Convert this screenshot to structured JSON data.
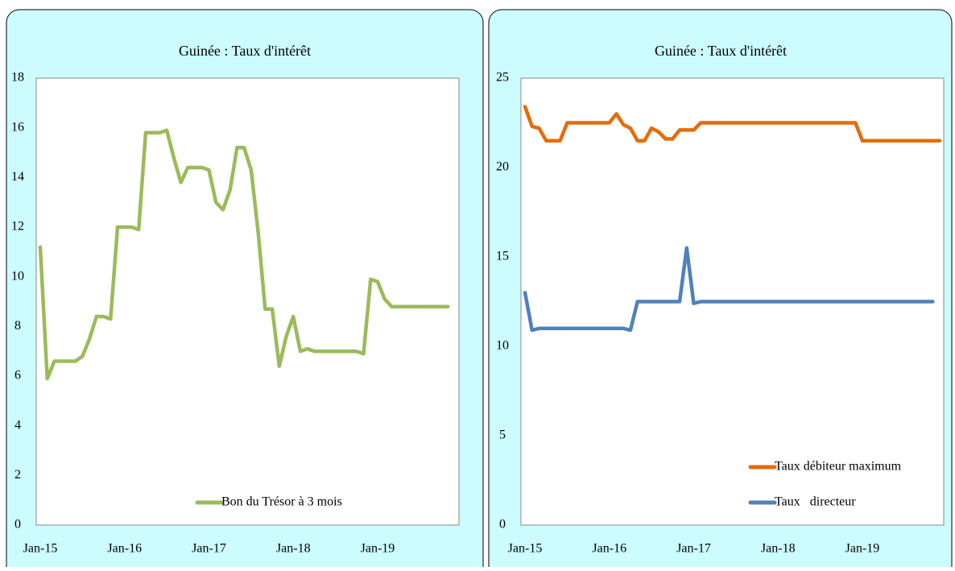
{
  "chart_data": [
    {
      "type": "line",
      "title": "Guinée : Taux d'intérêt",
      "categories": [
        "Jan-15",
        null,
        null,
        null,
        null,
        null,
        null,
        null,
        null,
        null,
        null,
        null,
        "Jan-16",
        null,
        null,
        null,
        null,
        null,
        null,
        null,
        null,
        null,
        null,
        null,
        "Jan-17",
        null,
        null,
        null,
        null,
        null,
        null,
        null,
        null,
        null,
        null,
        null,
        "Jan-18",
        null,
        null,
        null,
        null,
        null,
        null,
        null,
        null,
        null,
        null,
        null,
        "Jan-19",
        null,
        null,
        null,
        null,
        null,
        null,
        null,
        null,
        null,
        null,
        null
      ],
      "series": [
        {
          "name": "Bon du Trésor à 3 mois",
          "color": "#9bbb59",
          "values": [
            11.2,
            5.9,
            6.6,
            6.6,
            6.6,
            6.6,
            6.8,
            7.5,
            8.4,
            8.4,
            8.3,
            12.0,
            12.0,
            12.0,
            11.9,
            15.8,
            15.8,
            15.8,
            15.9,
            14.8,
            13.8,
            14.4,
            14.4,
            14.4,
            14.3,
            13.0,
            12.7,
            13.5,
            15.2,
            15.2,
            14.3,
            11.8,
            8.7,
            8.7,
            6.4,
            7.6,
            8.4,
            7.0,
            7.1,
            7.0,
            7.0,
            7.0,
            7.0,
            7.0,
            7.0,
            7.0,
            6.9,
            9.9,
            9.8,
            9.1,
            8.8,
            8.8,
            8.8,
            8.8,
            8.8,
            8.8,
            8.8,
            8.8,
            8.8,
            null
          ]
        }
      ],
      "ylim": [
        0,
        18
      ],
      "yticks": [
        0,
        2,
        4,
        6,
        8,
        10,
        12,
        14,
        16,
        18
      ],
      "legend": "lower-center"
    },
    {
      "type": "line",
      "title": "Guinée : Taux d'intérêt",
      "categories": [
        "Jan-15",
        null,
        null,
        null,
        null,
        null,
        null,
        null,
        null,
        null,
        null,
        null,
        "Jan-16",
        null,
        null,
        null,
        null,
        null,
        null,
        null,
        null,
        null,
        null,
        null,
        "Jan-17",
        null,
        null,
        null,
        null,
        null,
        null,
        null,
        null,
        null,
        null,
        null,
        "Jan-18",
        null,
        null,
        null,
        null,
        null,
        null,
        null,
        null,
        null,
        null,
        null,
        "Jan-19",
        null,
        null,
        null,
        null,
        null,
        null,
        null,
        null,
        null,
        null,
        null
      ],
      "series": [
        {
          "name": "Taux débiteur maximum",
          "color": "#e46c0a",
          "values": [
            23.4,
            22.3,
            22.2,
            21.5,
            21.5,
            21.5,
            22.5,
            22.5,
            22.5,
            22.5,
            22.5,
            22.5,
            22.5,
            23.0,
            22.4,
            22.2,
            21.5,
            21.5,
            22.2,
            22.0,
            21.6,
            21.6,
            22.1,
            22.1,
            22.1,
            22.5,
            22.5,
            22.5,
            22.5,
            22.5,
            22.5,
            22.5,
            22.5,
            22.5,
            22.5,
            22.5,
            22.5,
            22.5,
            22.5,
            22.5,
            22.5,
            22.5,
            22.5,
            22.5,
            22.5,
            22.5,
            22.5,
            22.5,
            21.5,
            21.5,
            21.5,
            21.5,
            21.5,
            21.5,
            21.5,
            21.5,
            21.5,
            21.5,
            21.5,
            21.5
          ]
        },
        {
          "name": "Taux   directeur",
          "color": "#4f81bd",
          "values": [
            13.0,
            10.9,
            11.0,
            11.0,
            11.0,
            11.0,
            11.0,
            11.0,
            11.0,
            11.0,
            11.0,
            11.0,
            11.0,
            11.0,
            11.0,
            10.9,
            12.5,
            12.5,
            12.5,
            12.5,
            12.5,
            12.5,
            12.5,
            15.5,
            12.4,
            12.5,
            12.5,
            12.5,
            12.5,
            12.5,
            12.5,
            12.5,
            12.5,
            12.5,
            12.5,
            12.5,
            12.5,
            12.5,
            12.5,
            12.5,
            12.5,
            12.5,
            12.5,
            12.5,
            12.5,
            12.5,
            12.5,
            12.5,
            12.5,
            12.5,
            12.5,
            12.5,
            12.5,
            12.5,
            12.5,
            12.5,
            12.5,
            12.5,
            12.5,
            null
          ]
        }
      ],
      "ylim": [
        0,
        25
      ],
      "yticks": [
        0,
        5,
        10,
        15,
        20,
        25
      ],
      "legend": "lower-right"
    }
  ]
}
